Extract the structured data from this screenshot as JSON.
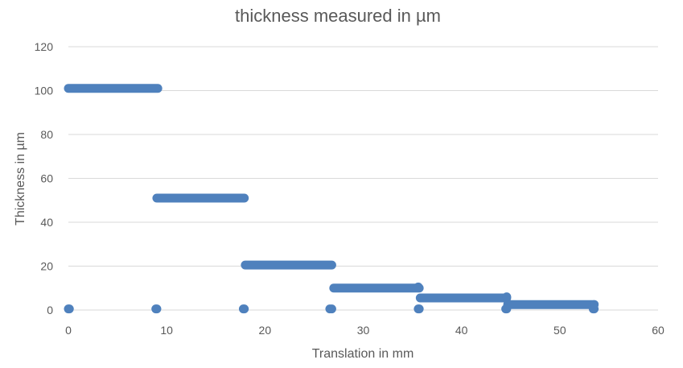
{
  "chart_data": {
    "type": "scatter",
    "title": "thickness measured in µm",
    "xlabel": "Translation in mm",
    "ylabel": "Thickness in µm",
    "xlim": [
      0,
      60
    ],
    "ylim": [
      0,
      120
    ],
    "x_ticks": [
      0,
      10,
      20,
      30,
      40,
      50,
      60
    ],
    "y_ticks": [
      0,
      20,
      40,
      60,
      80,
      100,
      120
    ],
    "grid": true,
    "legend": "none",
    "series": [
      {
        "color": "#4f81bd",
        "segments": [
          {
            "x_start": 0.0,
            "x_end": 9.1,
            "y": 101
          },
          {
            "x_start": 9.0,
            "x_end": 17.9,
            "y": 51
          },
          {
            "x_start": 18.0,
            "x_end": 26.8,
            "y": 20.5
          },
          {
            "x_start": 27.0,
            "x_end": 35.7,
            "y": 10
          },
          {
            "x_start": 35.8,
            "x_end": 44.6,
            "y": 5.5
          },
          {
            "x_start": 44.7,
            "x_end": 53.5,
            "y": 2.5
          }
        ],
        "points": [
          {
            "x": 0.0,
            "y": 0.5
          },
          {
            "x": 0.1,
            "y": 0.5
          },
          {
            "x": 8.9,
            "y": 0.5
          },
          {
            "x": 9.0,
            "y": 0.5
          },
          {
            "x": 17.8,
            "y": 0.5
          },
          {
            "x": 17.9,
            "y": 0.5
          },
          {
            "x": 26.6,
            "y": 0.5
          },
          {
            "x": 26.8,
            "y": 0.5
          },
          {
            "x": 35.6,
            "y": 0.5
          },
          {
            "x": 35.7,
            "y": 0.5
          },
          {
            "x": 35.6,
            "y": 10.5
          },
          {
            "x": 44.5,
            "y": 0.5
          },
          {
            "x": 44.6,
            "y": 0.5
          },
          {
            "x": 44.6,
            "y": 6
          },
          {
            "x": 53.4,
            "y": 0.5
          },
          {
            "x": 53.5,
            "y": 0.5
          },
          {
            "x": 53.5,
            "y": 2.5
          }
        ]
      }
    ]
  }
}
